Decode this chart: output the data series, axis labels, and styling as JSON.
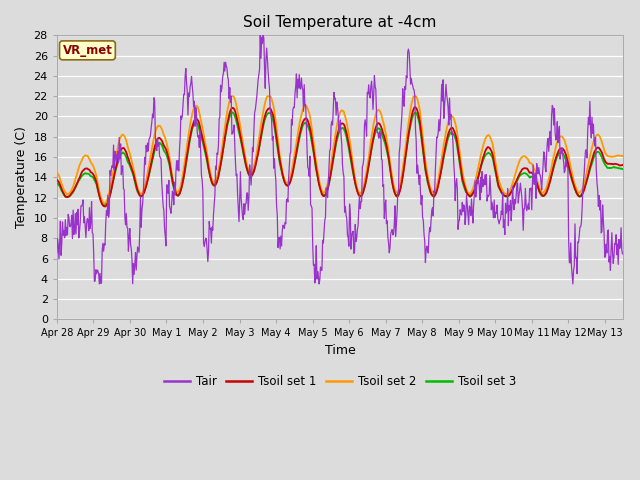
{
  "title": "Soil Temperature at -4cm",
  "xlabel": "Time",
  "ylabel": "Temperature (C)",
  "ylim": [
    0,
    28
  ],
  "yticks": [
    0,
    2,
    4,
    6,
    8,
    10,
    12,
    14,
    16,
    18,
    20,
    22,
    24,
    26,
    28
  ],
  "plot_bg_color": "#dcdcdc",
  "fig_bg_color": "#dcdcdc",
  "colors": {
    "Tair": "#9933cc",
    "Tsoil1": "#cc0000",
    "Tsoil2": "#ff9900",
    "Tsoil3": "#00bb00"
  },
  "legend_labels": [
    "Tair",
    "Tsoil set 1",
    "Tsoil set 2",
    "Tsoil set 3"
  ],
  "vr_met_label": "VR_met",
  "xtick_labels": [
    "Apr 28",
    "Apr 29",
    "Apr 30",
    "May 1",
    "May 2",
    "May 3",
    "May 4",
    "May 5",
    "May 6",
    "May 7",
    "May 8",
    "May 9",
    "May 10",
    "May 11",
    "May 12",
    "May 13"
  ],
  "n_points": 800
}
